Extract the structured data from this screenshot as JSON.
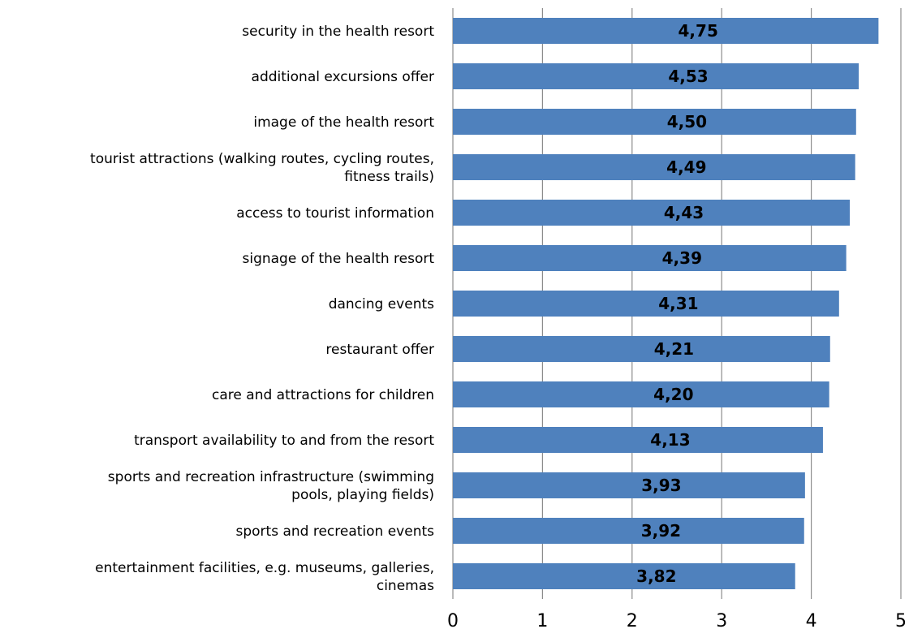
{
  "chart_data": {
    "type": "bar",
    "orientation": "horizontal",
    "categories": [
      "security in the health resort",
      "additional excursions offer",
      "image of the health resort",
      "tourist attractions (walking routes, cycling routes, fitness trails)",
      "access to tourist information",
      "signage of the health resort",
      "dancing events",
      "restaurant offer",
      "care and attractions for children",
      "transport availability to and from the resort",
      "sports and recreation infrastructure (swimming pools, playing fields)",
      "sports and recreation events",
      "entertainment facilities, e.g. museums, galleries, cinemas"
    ],
    "category_label_lines": [
      [
        "security in the health resort"
      ],
      [
        "additional excursions offer"
      ],
      [
        "image of the health resort"
      ],
      [
        "tourist attractions (walking routes, cycling routes,",
        "fitness trails)"
      ],
      [
        "access to tourist information"
      ],
      [
        "signage of the health resort"
      ],
      [
        "dancing events"
      ],
      [
        "restaurant offer"
      ],
      [
        "care and attractions for children"
      ],
      [
        "transport availability to and from the resort"
      ],
      [
        "sports and recreation infrastructure (swimming",
        "pools, playing fields)"
      ],
      [
        "sports and recreation events"
      ],
      [
        "entertainment facilities, e.g. museums, galleries,",
        "cinemas"
      ]
    ],
    "values": [
      4.75,
      4.53,
      4.5,
      4.49,
      4.43,
      4.39,
      4.31,
      4.21,
      4.2,
      4.13,
      3.93,
      3.92,
      3.82
    ],
    "data_labels": [
      "4,75",
      "4,53",
      "4,50",
      "4,49",
      "4,43",
      "4,39",
      "4,31",
      "4,21",
      "4,20",
      "4,13",
      "3,93",
      "3,92",
      "3,82"
    ],
    "xticks": [
      "0",
      "1",
      "2",
      "3",
      "4",
      "5"
    ],
    "xlim": [
      0,
      5
    ],
    "grid": "vertical",
    "legend": "none",
    "bar_color": "#4F81BD",
    "gridline_color": "#8C8C8C"
  }
}
